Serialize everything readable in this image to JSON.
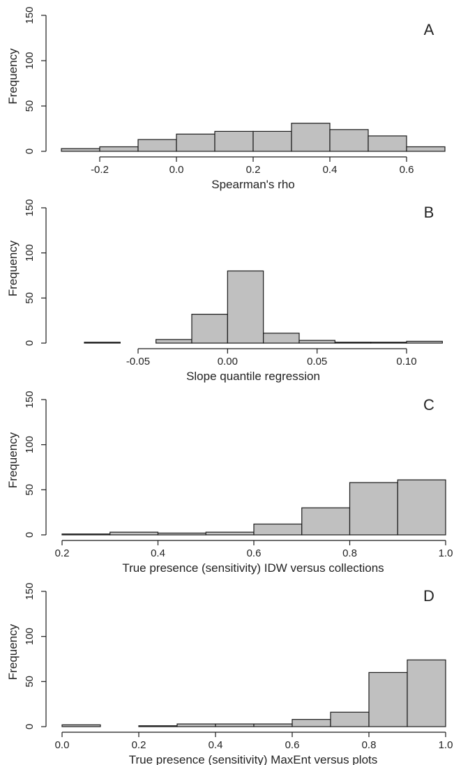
{
  "chart_data": [
    {
      "type": "bar",
      "panel_label": "A",
      "xlabel": "Spearman's rho",
      "ylabel": "Frequency",
      "xlim": [
        -0.3,
        0.7
      ],
      "ylim": [
        0,
        150
      ],
      "xticks": [
        -0.2,
        0.0,
        0.2,
        0.4,
        0.6
      ],
      "xtick_labels": [
        "-0.2",
        "0.0",
        "0.2",
        "0.4",
        "0.6"
      ],
      "yticks": [
        0,
        50,
        100,
        150
      ],
      "ytick_labels": [
        "0",
        "50",
        "100",
        "150"
      ],
      "bins": [
        {
          "x0": -0.3,
          "x1": -0.2,
          "count": 3
        },
        {
          "x0": -0.2,
          "x1": -0.1,
          "count": 5
        },
        {
          "x0": -0.1,
          "x1": 0.0,
          "count": 13
        },
        {
          "x0": 0.0,
          "x1": 0.1,
          "count": 19
        },
        {
          "x0": 0.1,
          "x1": 0.2,
          "count": 22
        },
        {
          "x0": 0.2,
          "x1": 0.3,
          "count": 22
        },
        {
          "x0": 0.3,
          "x1": 0.4,
          "count": 31
        },
        {
          "x0": 0.4,
          "x1": 0.5,
          "count": 24
        },
        {
          "x0": 0.5,
          "x1": 0.6,
          "count": 17
        },
        {
          "x0": 0.6,
          "x1": 0.7,
          "count": 5
        }
      ],
      "bar_color": "#c0c0c0"
    },
    {
      "type": "bar",
      "panel_label": "B",
      "xlabel": "Slope quantile regression",
      "ylabel": "Frequency",
      "xlim": [
        -0.08,
        0.12
      ],
      "ylim": [
        0,
        150
      ],
      "xticks": [
        -0.05,
        0.0,
        0.05,
        0.1
      ],
      "xtick_labels": [
        "-0.05",
        "0.00",
        "0.05",
        "0.10"
      ],
      "yticks": [
        0,
        50,
        100,
        150
      ],
      "ytick_labels": [
        "0",
        "50",
        "100",
        "150"
      ],
      "bins": [
        {
          "x0": -0.08,
          "x1": -0.06,
          "count": 1
        },
        {
          "x0": -0.06,
          "x1": -0.04,
          "count": 0
        },
        {
          "x0": -0.04,
          "x1": -0.02,
          "count": 4
        },
        {
          "x0": -0.02,
          "x1": 0.0,
          "count": 32
        },
        {
          "x0": 0.0,
          "x1": 0.02,
          "count": 80
        },
        {
          "x0": 0.02,
          "x1": 0.04,
          "count": 11
        },
        {
          "x0": 0.04,
          "x1": 0.06,
          "count": 3
        },
        {
          "x0": 0.06,
          "x1": 0.08,
          "count": 1
        },
        {
          "x0": 0.08,
          "x1": 0.1,
          "count": 1
        },
        {
          "x0": 0.1,
          "x1": 0.12,
          "count": 2
        }
      ],
      "bar_color": "#c0c0c0"
    },
    {
      "type": "bar",
      "panel_label": "C",
      "xlabel": "True presence (sensitivity) IDW versus collections",
      "ylabel": "Frequency",
      "xlim": [
        0.2,
        1.0
      ],
      "ylim": [
        0,
        150
      ],
      "xticks": [
        0.2,
        0.4,
        0.6,
        0.8,
        1.0
      ],
      "xtick_labels": [
        "0.2",
        "0.4",
        "0.6",
        "0.8",
        "1.0"
      ],
      "yticks": [
        0,
        50,
        100,
        150
      ],
      "ytick_labels": [
        "0",
        "50",
        "100",
        "150"
      ],
      "bins": [
        {
          "x0": 0.2,
          "x1": 0.3,
          "count": 1
        },
        {
          "x0": 0.3,
          "x1": 0.4,
          "count": 3
        },
        {
          "x0": 0.4,
          "x1": 0.5,
          "count": 2
        },
        {
          "x0": 0.5,
          "x1": 0.6,
          "count": 3
        },
        {
          "x0": 0.6,
          "x1": 0.7,
          "count": 12
        },
        {
          "x0": 0.7,
          "x1": 0.8,
          "count": 30
        },
        {
          "x0": 0.8,
          "x1": 0.9,
          "count": 58
        },
        {
          "x0": 0.9,
          "x1": 1.0,
          "count": 61
        }
      ],
      "bar_color": "#c0c0c0"
    },
    {
      "type": "bar",
      "panel_label": "D",
      "xlabel": "True presence (sensitivity) MaxEnt versus plots",
      "ylabel": "Frequency",
      "xlim": [
        0.0,
        1.0
      ],
      "ylim": [
        0,
        150
      ],
      "xticks": [
        0.0,
        0.2,
        0.4,
        0.6,
        0.8,
        1.0
      ],
      "xtick_labels": [
        "0.0",
        "0.2",
        "0.4",
        "0.6",
        "0.8",
        "1.0"
      ],
      "yticks": [
        0,
        50,
        100,
        150
      ],
      "ytick_labels": [
        "0",
        "50",
        "100",
        "150"
      ],
      "bins": [
        {
          "x0": 0.0,
          "x1": 0.1,
          "count": 2
        },
        {
          "x0": 0.1,
          "x1": 0.2,
          "count": 0
        },
        {
          "x0": 0.2,
          "x1": 0.3,
          "count": 1
        },
        {
          "x0": 0.3,
          "x1": 0.4,
          "count": 3
        },
        {
          "x0": 0.4,
          "x1": 0.5,
          "count": 3
        },
        {
          "x0": 0.5,
          "x1": 0.6,
          "count": 3
        },
        {
          "x0": 0.6,
          "x1": 0.7,
          "count": 8
        },
        {
          "x0": 0.7,
          "x1": 0.8,
          "count": 16
        },
        {
          "x0": 0.8,
          "x1": 0.9,
          "count": 60
        },
        {
          "x0": 0.9,
          "x1": 1.0,
          "count": 74
        }
      ],
      "bar_color": "#c0c0c0"
    }
  ]
}
